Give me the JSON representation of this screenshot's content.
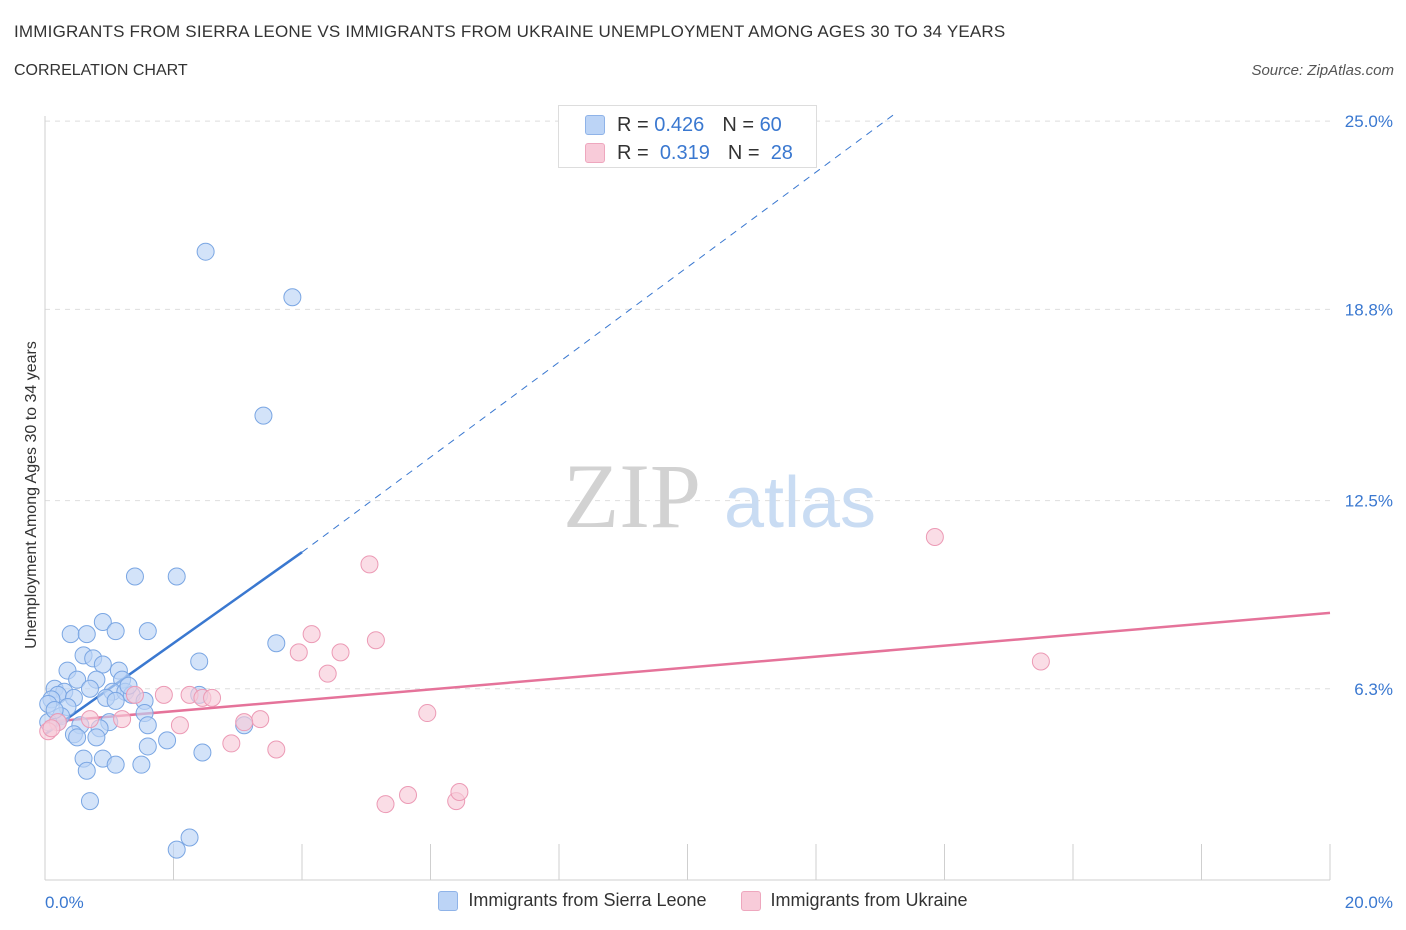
{
  "title": "IMMIGRANTS FROM SIERRA LEONE VS IMMIGRANTS FROM UKRAINE UNEMPLOYMENT AMONG AGES 30 TO 34 YEARS",
  "subtitle": "CORRELATION CHART",
  "source": "Source: ZipAtlas.com",
  "watermark": {
    "zip": "ZIP",
    "atlas": "atlas"
  },
  "stats": {
    "blue": {
      "r_label": "R =",
      "r_value": "0.426",
      "n_label": "N =",
      "n_value": "60"
    },
    "pink": {
      "r_label": "R =",
      "r_value": "0.319",
      "n_label": "N =",
      "n_value": "28"
    }
  },
  "chart_data": {
    "type": "scatter",
    "xlabel": "",
    "ylabel": "Unemployment Among Ages 30 to 34 years",
    "xlim": [
      0,
      20
    ],
    "ylim": [
      0,
      25.5
    ],
    "x_tick_labels": [
      {
        "value": 0,
        "label": "0.0%"
      },
      {
        "value": 20,
        "label": "20.0%"
      }
    ],
    "y_tick_labels": [
      {
        "value": 6.3,
        "label": "6.3%"
      },
      {
        "value": 12.5,
        "label": "12.5%"
      },
      {
        "value": 18.8,
        "label": "18.8%"
      },
      {
        "value": 25.0,
        "label": "25.0%"
      }
    ],
    "grid": true,
    "legend_position": "bottom",
    "colors": {
      "blue": "#3a78d0",
      "blue_fill": "#bcd4f6",
      "pink": "#e5739a",
      "pink_fill": "#f8cbd9"
    },
    "series": [
      {
        "name": "Immigrants from Sierra Leone",
        "color": "blue",
        "points": [
          [
            2.5,
            20.7
          ],
          [
            3.85,
            19.2
          ],
          [
            3.4,
            15.3
          ],
          [
            1.4,
            10.0
          ],
          [
            2.05,
            10.0
          ],
          [
            0.9,
            8.5
          ],
          [
            1.1,
            8.2
          ],
          [
            1.6,
            8.2
          ],
          [
            0.4,
            8.1
          ],
          [
            0.65,
            8.1
          ],
          [
            3.6,
            7.8
          ],
          [
            0.6,
            7.4
          ],
          [
            0.75,
            7.3
          ],
          [
            0.9,
            7.1
          ],
          [
            2.4,
            7.2
          ],
          [
            0.35,
            6.9
          ],
          [
            1.15,
            6.9
          ],
          [
            0.5,
            6.6
          ],
          [
            0.8,
            6.6
          ],
          [
            1.2,
            6.6
          ],
          [
            0.15,
            6.3
          ],
          [
            0.3,
            6.2
          ],
          [
            0.7,
            6.3
          ],
          [
            1.05,
            6.2
          ],
          [
            1.25,
            6.2
          ],
          [
            1.35,
            6.1
          ],
          [
            0.2,
            6.1
          ],
          [
            0.1,
            5.95
          ],
          [
            0.45,
            6.0
          ],
          [
            0.95,
            6.0
          ],
          [
            1.1,
            5.9
          ],
          [
            1.55,
            5.9
          ],
          [
            0.05,
            5.8
          ],
          [
            0.35,
            5.7
          ],
          [
            0.25,
            5.4
          ],
          [
            1.55,
            5.5
          ],
          [
            0.2,
            5.2
          ],
          [
            0.55,
            5.1
          ],
          [
            1.0,
            5.2
          ],
          [
            1.6,
            5.1
          ],
          [
            0.85,
            5.0
          ],
          [
            3.1,
            5.1
          ],
          [
            0.45,
            4.8
          ],
          [
            0.5,
            4.7
          ],
          [
            0.8,
            4.7
          ],
          [
            1.9,
            4.6
          ],
          [
            1.6,
            4.4
          ],
          [
            2.45,
            4.2
          ],
          [
            0.6,
            4.0
          ],
          [
            0.9,
            4.0
          ],
          [
            0.65,
            3.6
          ],
          [
            1.1,
            3.8
          ],
          [
            1.5,
            3.8
          ],
          [
            0.7,
            2.6
          ],
          [
            2.25,
            1.4
          ],
          [
            2.05,
            1.0
          ],
          [
            0.05,
            5.2
          ],
          [
            0.15,
            5.6
          ],
          [
            2.4,
            6.1
          ],
          [
            1.3,
            6.4
          ]
        ]
      },
      {
        "name": "Immigrants from Ukraine",
        "color": "pink",
        "points": [
          [
            13.85,
            11.3
          ],
          [
            5.05,
            10.4
          ],
          [
            4.15,
            8.1
          ],
          [
            5.15,
            7.9
          ],
          [
            3.95,
            7.5
          ],
          [
            4.6,
            7.5
          ],
          [
            15.5,
            7.2
          ],
          [
            4.4,
            6.8
          ],
          [
            1.85,
            6.1
          ],
          [
            2.25,
            6.1
          ],
          [
            2.45,
            6.0
          ],
          [
            2.6,
            6.0
          ],
          [
            1.4,
            6.1
          ],
          [
            0.2,
            5.2
          ],
          [
            1.2,
            5.3
          ],
          [
            0.7,
            5.3
          ],
          [
            3.35,
            5.3
          ],
          [
            3.1,
            5.2
          ],
          [
            2.1,
            5.1
          ],
          [
            5.95,
            5.5
          ],
          [
            2.9,
            4.5
          ],
          [
            3.6,
            4.3
          ],
          [
            0.05,
            4.9
          ],
          [
            5.3,
            2.5
          ],
          [
            5.65,
            2.8
          ],
          [
            6.4,
            2.6
          ],
          [
            6.45,
            2.9
          ],
          [
            0.1,
            5.0
          ]
        ]
      }
    ],
    "trend_lines": [
      {
        "series": "Immigrants from Sierra Leone",
        "style": "solid",
        "x": [
          0,
          4.0
        ],
        "y": [
          4.8,
          10.8
        ]
      },
      {
        "series": "Immigrants from Sierra Leone",
        "style": "dashed",
        "x": [
          4.0,
          13.2
        ],
        "y": [
          10.8,
          25.2
        ]
      },
      {
        "series": "Immigrants from Ukraine",
        "style": "solid",
        "x": [
          0,
          20
        ],
        "y": [
          5.2,
          8.8
        ]
      }
    ]
  }
}
